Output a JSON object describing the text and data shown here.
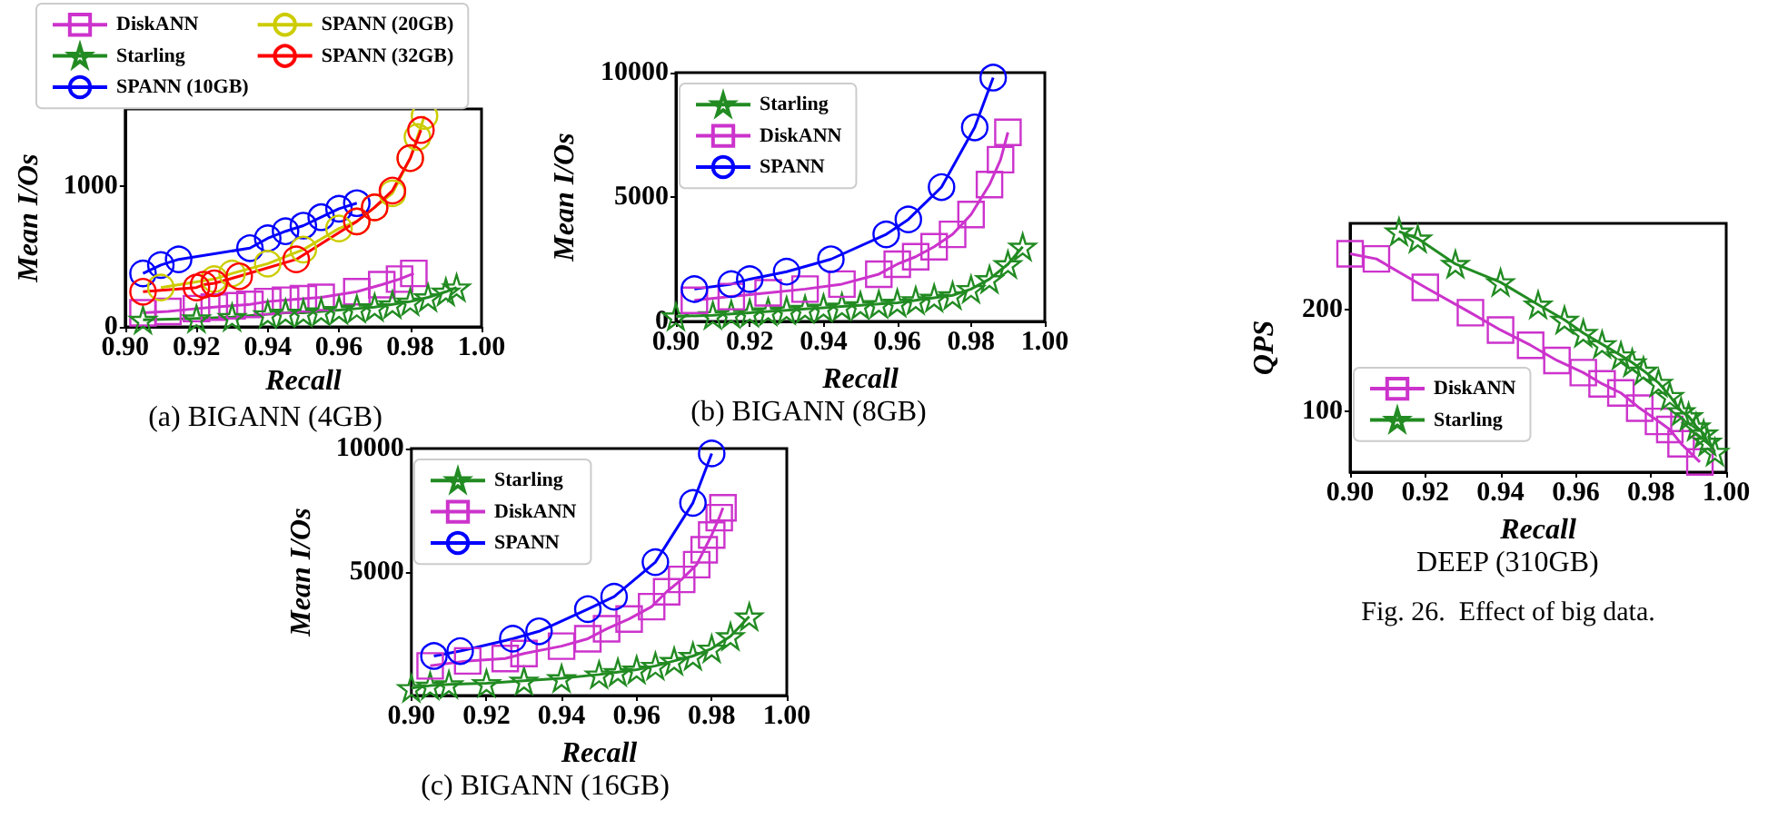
{
  "chart_data": [
    {
      "type": "line",
      "xlabel": "Recall",
      "ylabel": "Mean I/Os",
      "xlim": [
        0.9,
        1.0
      ],
      "ylim": [
        0,
        1550
      ],
      "xticks": [
        {
          "value": 0.9,
          "label": "0.90"
        },
        {
          "value": 0.92,
          "label": "0.92"
        },
        {
          "value": 0.94,
          "label": "0.94"
        },
        {
          "value": 0.96,
          "label": "0.96"
        },
        {
          "value": 0.98,
          "label": "0.98"
        },
        {
          "value": 1.0,
          "label": "1.00"
        }
      ],
      "yticks": [
        0,
        1000
      ],
      "legend": "top",
      "annotations": [
        "(a) BIGANN (4GB)"
      ],
      "series": [
        {
          "name": "DiskANN",
          "color": "#cc33cc",
          "marker": "square",
          "x": [
            0.905,
            0.912,
            0.92,
            0.925,
            0.93,
            0.935,
            0.94,
            0.945,
            0.95,
            0.955,
            0.965,
            0.972,
            0.977,
            0.981
          ],
          "values": [
            100,
            110,
            130,
            140,
            150,
            160,
            180,
            190,
            200,
            210,
            250,
            300,
            340,
            380
          ]
        },
        {
          "name": "Starling",
          "color": "#228b22",
          "marker": "star",
          "x": [
            0.905,
            0.92,
            0.93,
            0.94,
            0.945,
            0.95,
            0.955,
            0.96,
            0.965,
            0.97,
            0.975,
            0.98,
            0.985,
            0.99,
            0.993
          ],
          "values": [
            50,
            60,
            70,
            90,
            100,
            100,
            110,
            120,
            130,
            140,
            160,
            180,
            210,
            250,
            280
          ]
        },
        {
          "name": "SPANN (10GB)",
          "color": "#0000ff",
          "marker": "circle",
          "x": [
            0.905,
            0.91,
            0.915,
            0.935,
            0.94,
            0.945,
            0.95,
            0.955,
            0.96,
            0.965
          ],
          "values": [
            380,
            440,
            480,
            560,
            630,
            680,
            720,
            780,
            840,
            880
          ]
        },
        {
          "name": "SPANN (20GB)",
          "color": "#cccc00",
          "marker": "circle",
          "x": [
            0.91,
            0.925,
            0.93,
            0.94,
            0.95,
            0.96,
            0.965,
            0.97,
            0.975,
            0.98,
            0.982,
            0.984
          ],
          "values": [
            280,
            340,
            380,
            450,
            550,
            700,
            750,
            850,
            950,
            1200,
            1350,
            1500
          ]
        },
        {
          "name": "SPANN (32GB)",
          "color": "#ff0000",
          "marker": "circle",
          "x": [
            0.905,
            0.92,
            0.922,
            0.925,
            0.932,
            0.948,
            0.965,
            0.97,
            0.975,
            0.98,
            0.983
          ],
          "values": [
            250,
            280,
            300,
            310,
            360,
            480,
            750,
            850,
            970,
            1200,
            1400
          ]
        }
      ]
    },
    {
      "type": "line",
      "xlabel": "Recall",
      "ylabel": "Mean I/Os",
      "xlim": [
        0.9,
        1.0
      ],
      "ylim": [
        0,
        10000
      ],
      "xticks": [
        {
          "value": 0.9,
          "label": "0.90"
        },
        {
          "value": 0.92,
          "label": "0.92"
        },
        {
          "value": 0.94,
          "label": "0.94"
        },
        {
          "value": 0.96,
          "label": "0.96"
        },
        {
          "value": 0.98,
          "label": "0.98"
        },
        {
          "value": 1.0,
          "label": "1.00"
        }
      ],
      "yticks": [
        0,
        5000,
        10000
      ],
      "legend": "top left",
      "annotations": [
        "(b) BIGANN (8GB)"
      ],
      "series": [
        {
          "name": "Starling",
          "color": "#228b22",
          "marker": "star",
          "x": [
            0.9,
            0.91,
            0.915,
            0.92,
            0.925,
            0.93,
            0.935,
            0.94,
            0.945,
            0.95,
            0.955,
            0.96,
            0.965,
            0.97,
            0.975,
            0.98,
            0.985,
            0.99,
            0.994
          ],
          "values": [
            200,
            250,
            300,
            350,
            400,
            450,
            500,
            550,
            600,
            650,
            700,
            750,
            850,
            950,
            1050,
            1300,
            1700,
            2300,
            3000
          ]
        },
        {
          "name": "DiskANN",
          "color": "#cc33cc",
          "marker": "square",
          "x": [
            0.905,
            0.915,
            0.925,
            0.935,
            0.945,
            0.955,
            0.96,
            0.965,
            0.97,
            0.975,
            0.98,
            0.985,
            0.988,
            0.99
          ],
          "values": [
            850,
            1000,
            1150,
            1300,
            1500,
            1900,
            2300,
            2600,
            3000,
            3500,
            4300,
            5500,
            6500,
            7600
          ]
        },
        {
          "name": "SPANN",
          "color": "#0000ff",
          "marker": "circle",
          "x": [
            0.905,
            0.915,
            0.92,
            0.93,
            0.942,
            0.957,
            0.963,
            0.972,
            0.981,
            0.986
          ],
          "values": [
            1300,
            1500,
            1700,
            2000,
            2500,
            3500,
            4100,
            5400,
            7800,
            9800
          ]
        }
      ]
    },
    {
      "type": "line",
      "xlabel": "Recall",
      "ylabel": "Mean I/Os",
      "xlim": [
        0.9,
        1.0
      ],
      "ylim": [
        0,
        10000
      ],
      "xticks": [
        {
          "value": 0.9,
          "label": "0.90"
        },
        {
          "value": 0.92,
          "label": "0.92"
        },
        {
          "value": 0.94,
          "label": "0.94"
        },
        {
          "value": 0.96,
          "label": "0.96"
        },
        {
          "value": 0.98,
          "label": "0.98"
        },
        {
          "value": 1.0,
          "label": "1.00"
        }
      ],
      "yticks": [
        5000,
        10000
      ],
      "legend": "top left",
      "annotations": [
        "(c) BIGANN (16GB)"
      ],
      "series": [
        {
          "name": "Starling",
          "color": "#228b22",
          "marker": "star",
          "x": [
            0.9,
            0.905,
            0.91,
            0.92,
            0.93,
            0.94,
            0.95,
            0.955,
            0.96,
            0.965,
            0.97,
            0.975,
            0.98,
            0.985,
            0.99
          ],
          "values": [
            300,
            400,
            450,
            500,
            600,
            700,
            850,
            950,
            1050,
            1200,
            1400,
            1600,
            1900,
            2400,
            3200
          ]
        },
        {
          "name": "DiskANN",
          "color": "#cc33cc",
          "marker": "square",
          "x": [
            0.905,
            0.915,
            0.925,
            0.93,
            0.94,
            0.947,
            0.952,
            0.958,
            0.964,
            0.968,
            0.972,
            0.976,
            0.978,
            0.98,
            0.982,
            0.983
          ],
          "values": [
            1200,
            1400,
            1500,
            1700,
            2000,
            2300,
            2700,
            3100,
            3600,
            4200,
            4700,
            5300,
            5900,
            6500,
            7200,
            7600
          ]
        },
        {
          "name": "SPANN",
          "color": "#0000ff",
          "marker": "circle",
          "x": [
            0.906,
            0.913,
            0.927,
            0.934,
            0.947,
            0.954,
            0.965,
            0.975,
            0.98
          ],
          "values": [
            1600,
            1800,
            2300,
            2600,
            3500,
            4000,
            5400,
            7800,
            9800
          ]
        }
      ]
    },
    {
      "type": "line",
      "xlabel": "Recall",
      "ylabel": "QPS",
      "xlim": [
        0.9,
        1.0
      ],
      "ylim": [
        40,
        285
      ],
      "xticks": [
        {
          "value": 0.9,
          "label": "0.90"
        },
        {
          "value": 0.92,
          "label": "0.92"
        },
        {
          "value": 0.94,
          "label": "0.94"
        },
        {
          "value": 0.96,
          "label": "0.96"
        },
        {
          "value": 0.98,
          "label": "0.98"
        },
        {
          "value": 1.0,
          "label": "1.00"
        }
      ],
      "yticks": [
        100,
        200
      ],
      "legend": "bottom left",
      "annotations": [
        "DEEP (310GB)",
        "Fig. 26.  Effect of big data."
      ],
      "series": [
        {
          "name": "DiskANN",
          "color": "#cc33cc",
          "marker": "square",
          "x": [
            0.9,
            0.907,
            0.92,
            0.932,
            0.94,
            0.948,
            0.955,
            0.962,
            0.967,
            0.972,
            0.977,
            0.982,
            0.985,
            0.988,
            0.993
          ],
          "values": [
            255,
            250,
            222,
            197,
            180,
            165,
            150,
            138,
            127,
            118,
            103,
            90,
            82,
            68,
            50
          ]
        },
        {
          "name": "Starling",
          "color": "#228b22",
          "marker": "star",
          "x": [
            0.913,
            0.918,
            0.928,
            0.94,
            0.95,
            0.957,
            0.962,
            0.967,
            0.972,
            0.975,
            0.978,
            0.982,
            0.985,
            0.988,
            0.99,
            0.992,
            0.994,
            0.995,
            0.997
          ],
          "values": [
            277,
            270,
            245,
            227,
            205,
            190,
            177,
            166,
            155,
            148,
            140,
            128,
            115,
            100,
            95,
            85,
            78,
            70,
            60
          ]
        }
      ]
    }
  ]
}
